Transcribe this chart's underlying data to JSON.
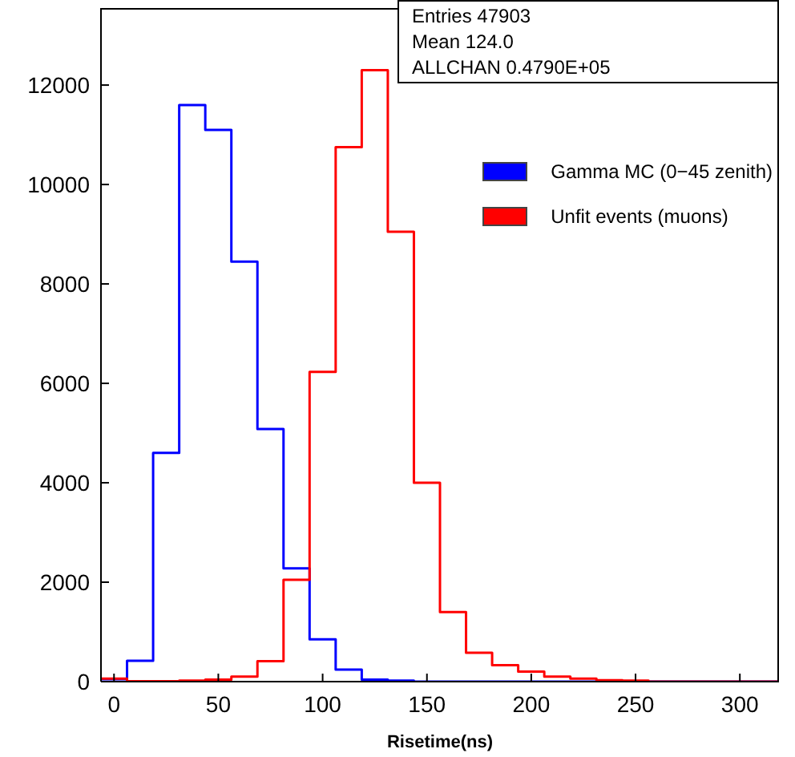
{
  "chart_data": {
    "type": "histogram",
    "xlabel": "Risetime(ns)",
    "bins": [
      -6.25,
      6.25,
      18.75,
      31.25,
      43.75,
      56.25,
      68.75,
      81.25,
      93.75,
      106.25,
      118.75,
      131.25,
      143.75,
      156.25,
      168.75,
      181.25,
      193.75,
      206.25,
      218.75,
      231.25,
      243.75,
      256.25,
      268.75,
      281.25,
      293.75,
      306.25,
      318.75
    ],
    "series": [
      {
        "name": "Gamma MC (0−45 zenith)",
        "color": "#0000ff",
        "values": [
          50,
          420,
          4600,
          11600,
          11100,
          8450,
          5080,
          2280,
          850,
          240,
          40,
          20,
          0,
          0,
          0,
          0,
          0,
          0,
          0,
          0,
          0,
          0,
          0,
          0,
          0,
          0
        ]
      },
      {
        "name": "Unfit events (muons)",
        "color": "#ff0000",
        "values": [
          60,
          10,
          10,
          20,
          40,
          100,
          410,
          2050,
          6230,
          10750,
          12300,
          9050,
          4000,
          1400,
          580,
          330,
          200,
          100,
          60,
          30,
          20,
          0,
          0,
          0,
          0,
          0
        ]
      }
    ],
    "xlim": [
      -6.25,
      318.75
    ],
    "xticks": [
      0,
      50,
      100,
      150,
      200,
      250,
      300
    ],
    "ylim": [
      0,
      13550
    ],
    "yticks": [
      0,
      2000,
      4000,
      6000,
      8000,
      10000,
      12000
    ],
    "legend": "right",
    "grid": false,
    "annotations": [
      "Entries 47903",
      "Mean 124.0",
      "ALLCHAN 0.4790E+05"
    ]
  }
}
